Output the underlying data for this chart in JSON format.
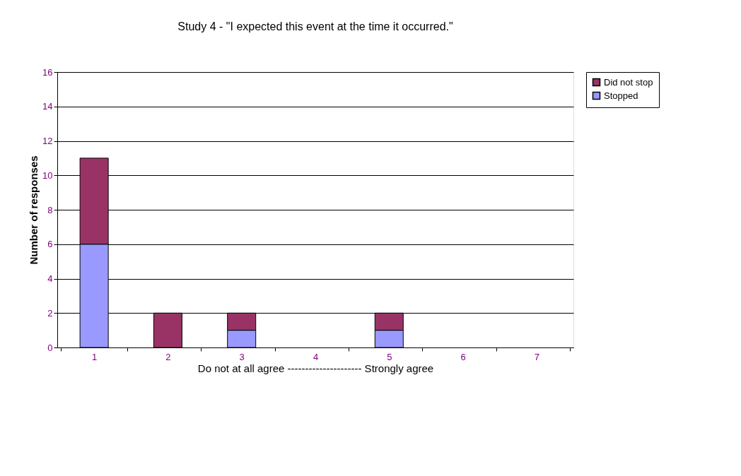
{
  "chart_data": {
    "type": "bar",
    "stacked": true,
    "title": "Study 4 - \"I expected this event at the time it occurred.\"",
    "xlabel": "Do not at all agree ---------------------  Strongly agree",
    "ylabel": "Number of responses",
    "categories": [
      "1",
      "2",
      "3",
      "4",
      "5",
      "6",
      "7"
    ],
    "series": [
      {
        "name": "Stopped",
        "color": "#9999ff",
        "values": [
          6,
          0,
          1,
          0,
          1,
          0,
          0
        ]
      },
      {
        "name": "Did not stop",
        "color": "#993366",
        "values": [
          5,
          2,
          1,
          0,
          1,
          0,
          0
        ]
      }
    ],
    "ylim": [
      0,
      16
    ],
    "yticks": [
      0,
      2,
      4,
      6,
      8,
      10,
      12,
      14,
      16
    ],
    "grid": "y",
    "legend": "right"
  }
}
